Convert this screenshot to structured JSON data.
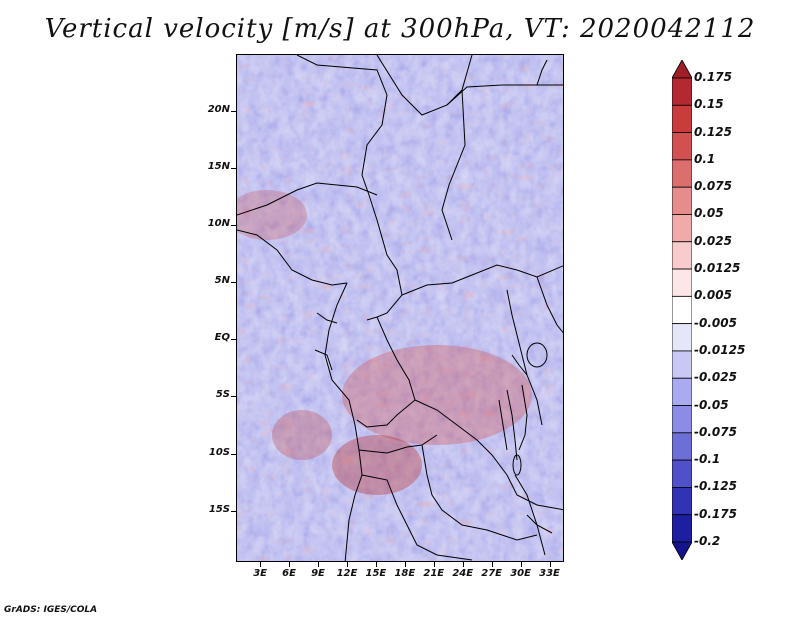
{
  "title": "Vertical velocity [m/s] at 300hPa, VT: 2020042112",
  "footer": "GrADS: IGES/COLA",
  "map": {
    "lat_labels": [
      "20N",
      "15N",
      "10N",
      "5N",
      "EQ",
      "5S",
      "10S",
      "15S"
    ],
    "lat_values": [
      20,
      15,
      10,
      5,
      0,
      -5,
      -10,
      -15
    ],
    "lon_labels": [
      "3E",
      "6E",
      "9E",
      "12E",
      "15E",
      "18E",
      "21E",
      "24E",
      "27E",
      "30E",
      "33E"
    ],
    "lon_values": [
      3,
      6,
      9,
      12,
      15,
      18,
      21,
      24,
      27,
      30,
      33
    ],
    "lon_range": [
      0.5,
      34.5
    ],
    "lat_range": [
      -19.5,
      25
    ]
  },
  "colorbar": {
    "labels": [
      "0.175",
      "0.15",
      "0.125",
      "0.1",
      "0.075",
      "0.05",
      "0.025",
      "0.0125",
      "0.005",
      "-0.005",
      "-0.0125",
      "-0.025",
      "-0.05",
      "-0.075",
      "-0.1",
      "-0.125",
      "-0.175",
      "-0.2"
    ],
    "colors": [
      "#a01e28",
      "#b42832",
      "#c83c3c",
      "#d25050",
      "#dc6e6e",
      "#e68c8c",
      "#f0aaaa",
      "#f8cccc",
      "#fce6e6",
      "#ffffff",
      "#e6e6fa",
      "#c8c8f5",
      "#aaaaf0",
      "#8c8ce6",
      "#6e6ed7",
      "#5050c8",
      "#3232b4",
      "#1e1ea0",
      "#14148c"
    ]
  }
}
